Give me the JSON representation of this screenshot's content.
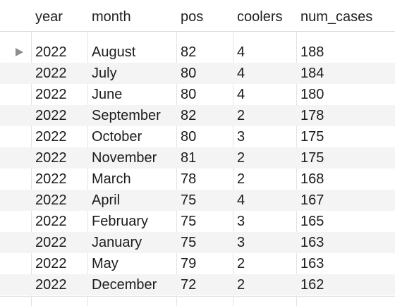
{
  "table": {
    "columns": [
      "year",
      "month",
      "pos",
      "coolers",
      "num_cases"
    ],
    "rows": [
      {
        "year": "2022",
        "month": "August",
        "pos": "82",
        "coolers": "4",
        "num_cases": "188"
      },
      {
        "year": "2022",
        "month": "July",
        "pos": "80",
        "coolers": "4",
        "num_cases": "184"
      },
      {
        "year": "2022",
        "month": "June",
        "pos": "80",
        "coolers": "4",
        "num_cases": "180"
      },
      {
        "year": "2022",
        "month": "September",
        "pos": "82",
        "coolers": "2",
        "num_cases": "178"
      },
      {
        "year": "2022",
        "month": "October",
        "pos": "80",
        "coolers": "3",
        "num_cases": "175"
      },
      {
        "year": "2022",
        "month": "November",
        "pos": "81",
        "coolers": "2",
        "num_cases": "175"
      },
      {
        "year": "2022",
        "month": "March",
        "pos": "78",
        "coolers": "2",
        "num_cases": "168"
      },
      {
        "year": "2022",
        "month": "April",
        "pos": "75",
        "coolers": "4",
        "num_cases": "167"
      },
      {
        "year": "2022",
        "month": "February",
        "pos": "75",
        "coolers": "3",
        "num_cases": "165"
      },
      {
        "year": "2022",
        "month": "January",
        "pos": "75",
        "coolers": "3",
        "num_cases": "163"
      },
      {
        "year": "2022",
        "month": "May",
        "pos": "79",
        "coolers": "2",
        "num_cases": "163"
      },
      {
        "year": "2022",
        "month": "December",
        "pos": "72",
        "coolers": "2",
        "num_cases": "162"
      }
    ],
    "selected_row_index": 0,
    "colors": {
      "alt_row": "#f4f4f4",
      "grid_line": "#e3e3e3",
      "marker": "#8e8e8e"
    }
  }
}
